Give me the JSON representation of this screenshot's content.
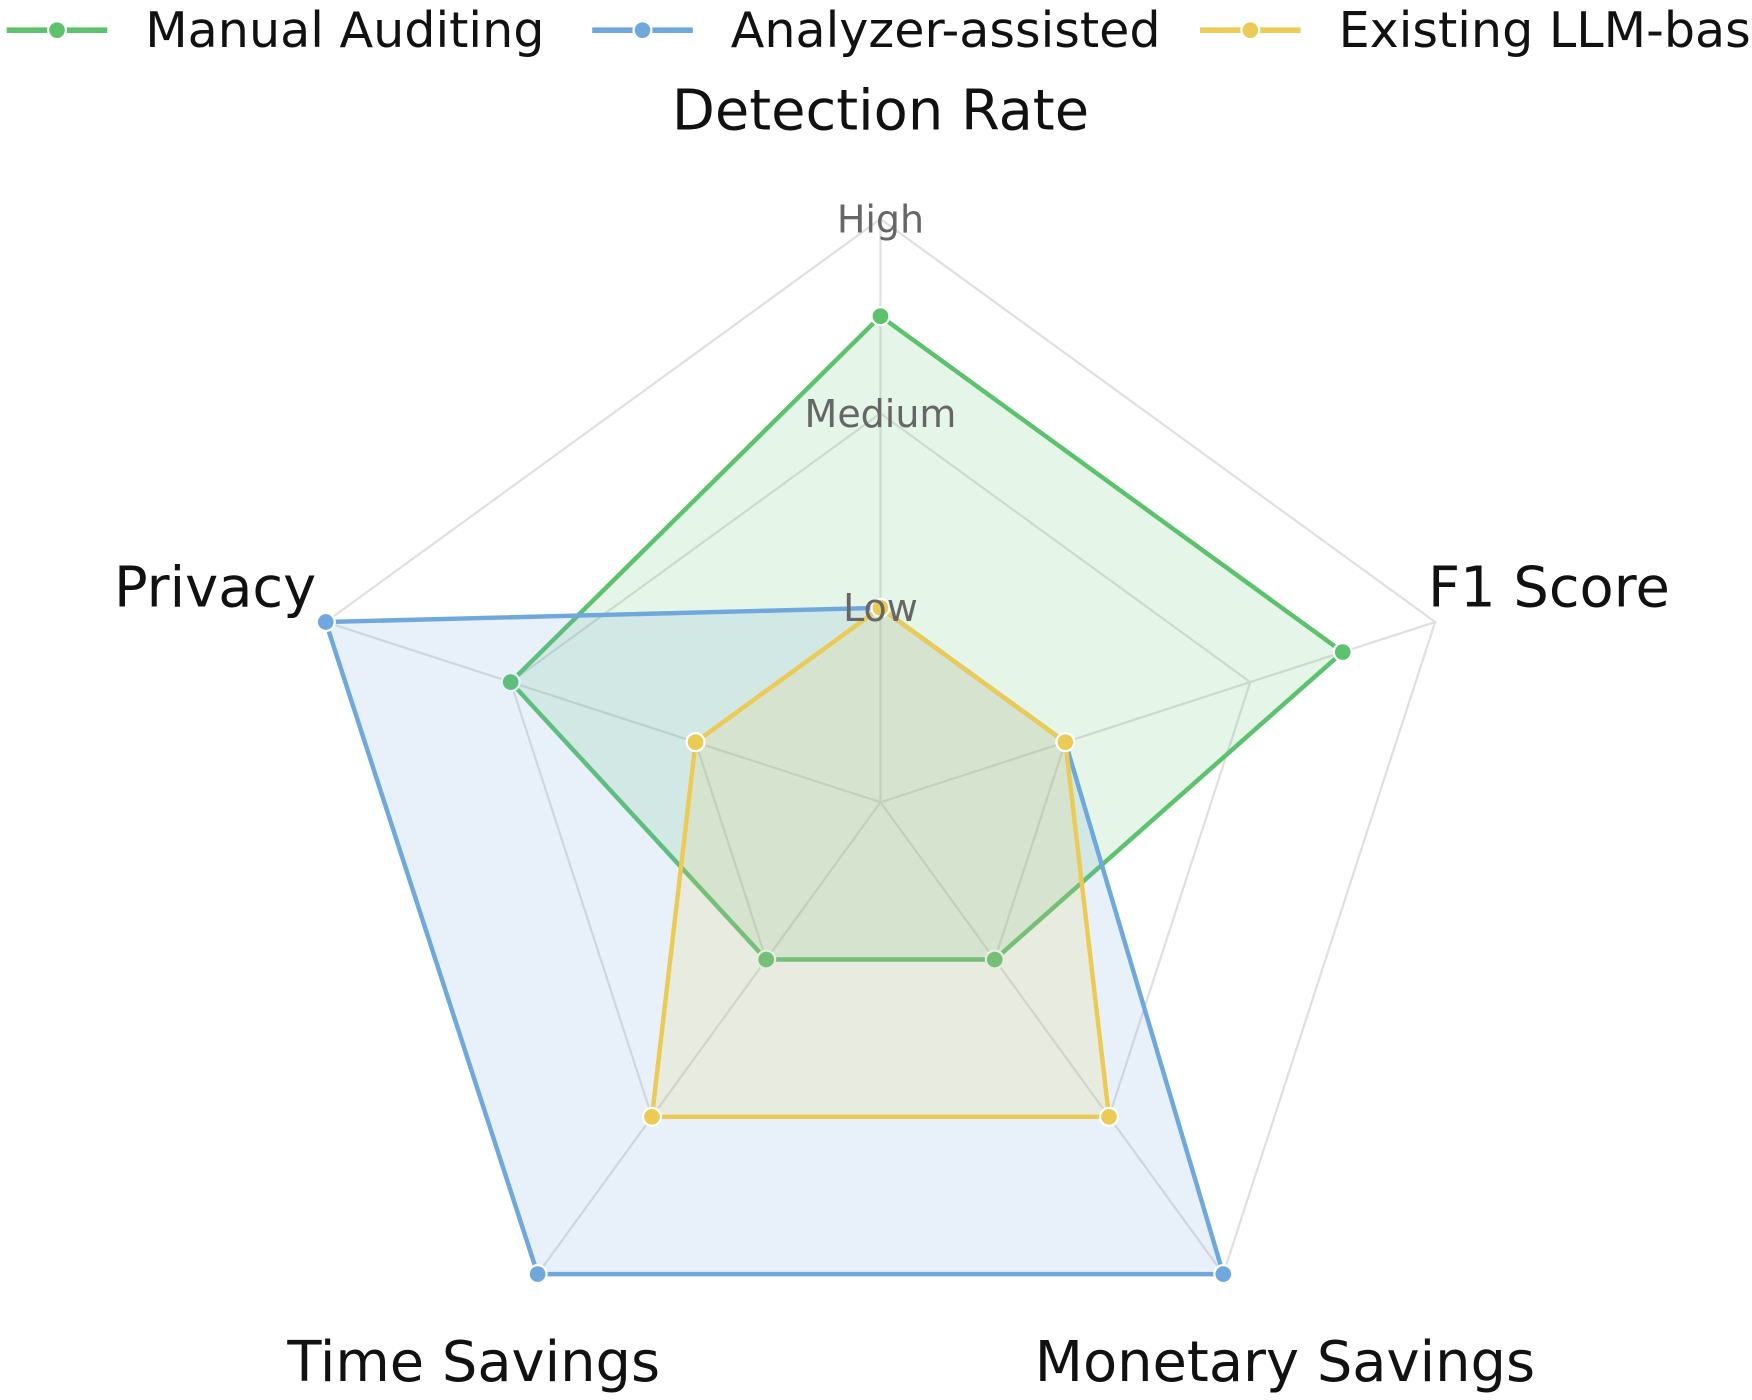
{
  "chart_data": {
    "type": "radar",
    "title": "",
    "axes": [
      "Detection Rate",
      "F1 Score",
      "Monetary Savings",
      "Time Savings",
      "Privacy"
    ],
    "scale": {
      "min": 0,
      "max": 3,
      "ring_values": [
        1,
        2,
        3
      ],
      "ring_labels": [
        "Low",
        "Medium",
        "High"
      ]
    },
    "grid": true,
    "legend_position": "top",
    "series": [
      {
        "name": "Manual Auditing",
        "color": "#5cc26e",
        "values": [
          2.5,
          2.5,
          1.0,
          1.0,
          2.0
        ]
      },
      {
        "name": "Analyzer-assisted",
        "color": "#6fa8dc",
        "values": [
          1.0,
          1.0,
          3.0,
          3.0,
          3.0
        ]
      },
      {
        "name": "Existing LLM-based",
        "color": "#ebcb55",
        "values": [
          1.0,
          1.0,
          2.0,
          2.0,
          1.0
        ]
      }
    ]
  }
}
